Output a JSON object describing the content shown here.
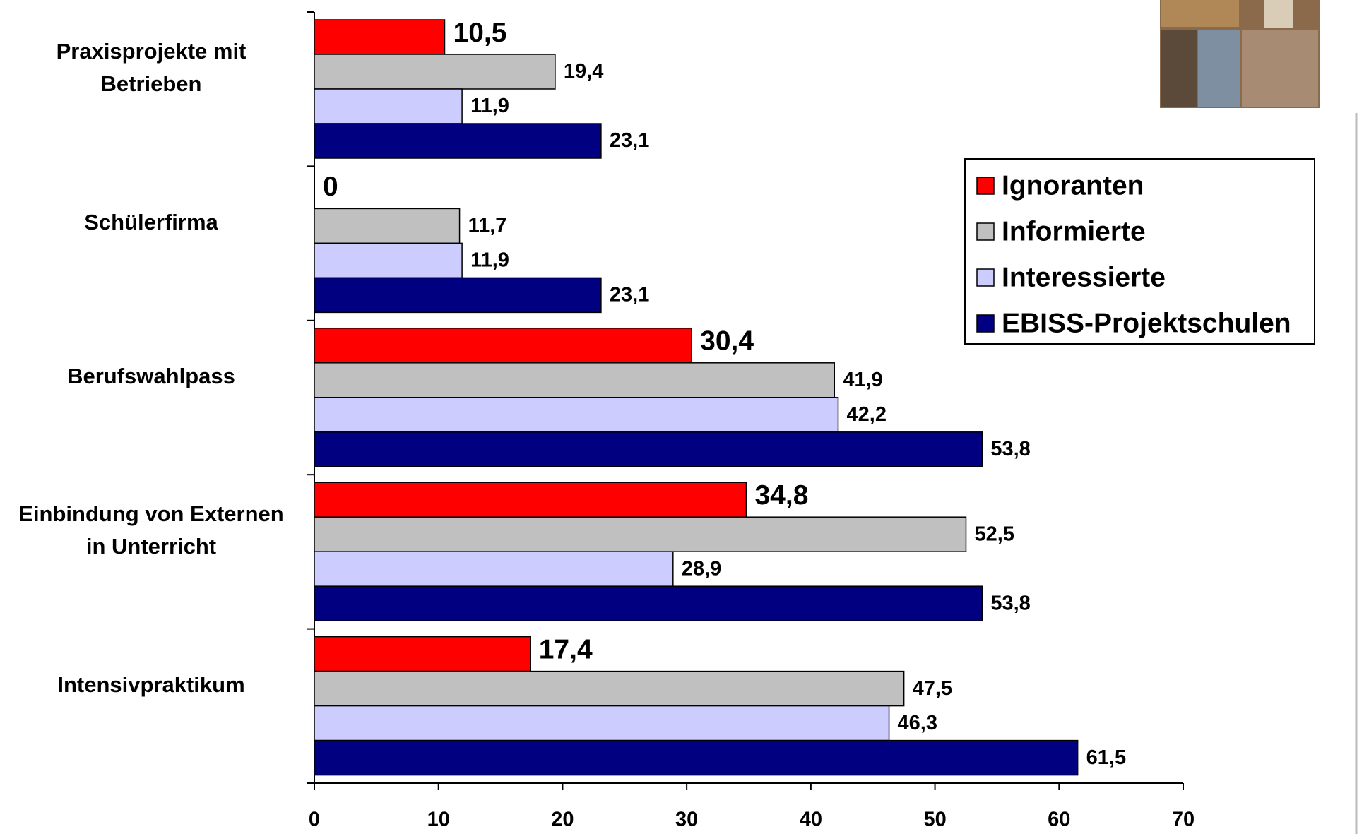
{
  "chart_data": {
    "type": "bar",
    "orientation": "horizontal",
    "categories": [
      "Praxisprojekte mit\nBetrieben",
      "Schülerfirma",
      "Berufswahlpass",
      "Einbindung von Externen\nin Unterricht",
      "Intensivpraktikum"
    ],
    "series": [
      {
        "name": "Ignoranten",
        "color": "#ff0000",
        "values": [
          10.5,
          0,
          30.4,
          34.8,
          17.4
        ],
        "value_labels": [
          "10,5",
          "0",
          "30,4",
          "34,8",
          "17,4"
        ]
      },
      {
        "name": "Informierte",
        "color": "#c0c0c0",
        "values": [
          19.4,
          11.7,
          41.9,
          52.5,
          47.5
        ],
        "value_labels": [
          "19,4",
          "11,7",
          "41,9",
          "52,5",
          "47,5"
        ]
      },
      {
        "name": "Interessierte",
        "color": "#ccccff",
        "values": [
          11.9,
          11.9,
          42.2,
          28.9,
          46.3
        ],
        "value_labels": [
          "11,9",
          "11,9",
          "42,2",
          "28,9",
          "46,3"
        ]
      },
      {
        "name": "EBISS-Projektschulen",
        "color": "#000080",
        "values": [
          23.1,
          23.1,
          53.8,
          53.8,
          61.5
        ],
        "value_labels": [
          "23,1",
          "23,1",
          "53,8",
          "53,8",
          "61,5"
        ]
      }
    ],
    "xlim": [
      0,
      70
    ],
    "xticks": [
      0,
      10,
      20,
      30,
      40,
      50,
      60,
      70
    ],
    "legend": "upper right"
  }
}
